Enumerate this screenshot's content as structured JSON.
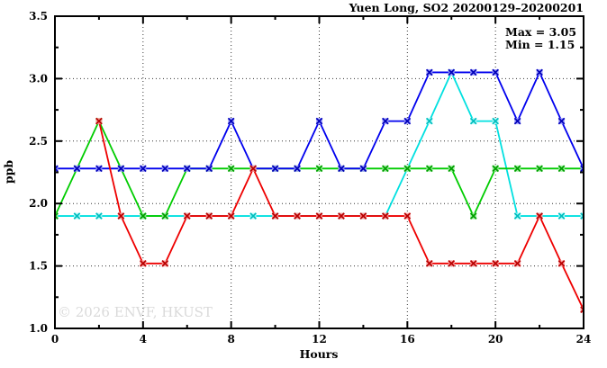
{
  "chart_data": {
    "type": "line",
    "title": "Yuen Long, SO2 20200129–20200201",
    "xlabel": "Hours",
    "ylabel": "ppb",
    "annotations": [
      "Max = 3.05",
      "Min = 1.15"
    ],
    "watermark": "© 2026 ENVF, HKUST",
    "xlim": [
      0,
      24
    ],
    "ylim": [
      1.0,
      3.5
    ],
    "xticks": [
      0,
      4,
      8,
      12,
      16,
      20,
      24
    ],
    "xtick_labels": [
      "0",
      "4",
      "8",
      "12",
      "16",
      "20",
      "24"
    ],
    "xminor": [
      2,
      6,
      10,
      14,
      18,
      22
    ],
    "yticks": [
      1.0,
      1.5,
      2.0,
      2.5,
      3.0,
      3.5
    ],
    "ytick_labels": [
      "1.0",
      "1.5",
      "2.0",
      "2.5",
      "3.0",
      "3.5"
    ],
    "yminor": [
      1.25,
      1.75,
      2.25,
      2.75,
      3.25
    ],
    "grid": {
      "style": "dotted",
      "x_at": [
        4,
        8,
        12,
        16,
        20
      ],
      "y_at": [
        1.5,
        2.0,
        2.5,
        3.0
      ],
      "color": "#333333"
    },
    "legend_position": "none",
    "frame_color": "#000000",
    "series": [
      {
        "name": "cyan",
        "color": "#00e0e0",
        "marker_color": "#00bdbd",
        "halo_color": "#aefcfc",
        "x": [
          0,
          1,
          2,
          3,
          4,
          5,
          6,
          7,
          8,
          9,
          10,
          11,
          12,
          13,
          14,
          15,
          16,
          17,
          18,
          19,
          20,
          21,
          22,
          23,
          24
        ],
        "y": [
          1.9,
          1.9,
          1.9,
          1.9,
          1.9,
          1.9,
          1.9,
          1.9,
          1.9,
          1.9,
          1.9,
          1.9,
          1.9,
          1.9,
          1.9,
          1.9,
          2.28,
          2.66,
          3.05,
          2.66,
          2.66,
          1.9,
          1.9,
          1.9,
          1.9
        ]
      },
      {
        "name": "green",
        "color": "#00cc00",
        "marker_color": "#009e00",
        "halo_color": "#93ef93",
        "x": [
          0,
          1,
          2,
          3,
          4,
          5,
          6,
          7,
          8,
          9,
          10,
          11,
          12,
          13,
          14,
          15,
          16,
          17,
          18,
          19,
          20,
          21,
          22,
          23,
          24
        ],
        "y": [
          1.9,
          2.28,
          2.66,
          2.28,
          1.9,
          1.9,
          2.28,
          2.28,
          2.28,
          2.28,
          2.28,
          2.28,
          2.28,
          2.28,
          2.28,
          2.28,
          2.28,
          2.28,
          2.28,
          1.9,
          2.28,
          2.28,
          2.28,
          2.28,
          2.28
        ]
      },
      {
        "name": "blue",
        "color": "#0000ee",
        "marker_color": "#0000b8",
        "halo_color": "#9a9aff",
        "x": [
          0,
          1,
          2,
          3,
          4,
          5,
          6,
          7,
          8,
          9,
          10,
          11,
          12,
          13,
          14,
          15,
          16,
          17,
          18,
          19,
          20,
          21,
          22,
          23,
          24
        ],
        "y": [
          2.28,
          2.28,
          2.28,
          2.28,
          2.28,
          2.28,
          2.28,
          2.28,
          2.66,
          2.28,
          2.28,
          2.28,
          2.66,
          2.28,
          2.28,
          2.66,
          2.66,
          3.05,
          3.05,
          3.05,
          3.05,
          2.66,
          3.05,
          2.66,
          2.28
        ]
      },
      {
        "name": "red",
        "color": "#ee0000",
        "marker_color": "#b80000",
        "halo_color": "#ff9a9a",
        "x": [
          2,
          3,
          4,
          5,
          6,
          7,
          8,
          9,
          10,
          11,
          12,
          13,
          14,
          15,
          16,
          17,
          18,
          19,
          20,
          21,
          22,
          23,
          24
        ],
        "y": [
          2.66,
          1.9,
          1.52,
          1.52,
          1.9,
          1.9,
          1.9,
          2.28,
          1.9,
          1.9,
          1.9,
          1.9,
          1.9,
          1.9,
          1.9,
          1.52,
          1.52,
          1.52,
          1.52,
          1.52,
          1.9,
          1.52,
          1.15
        ]
      }
    ]
  }
}
